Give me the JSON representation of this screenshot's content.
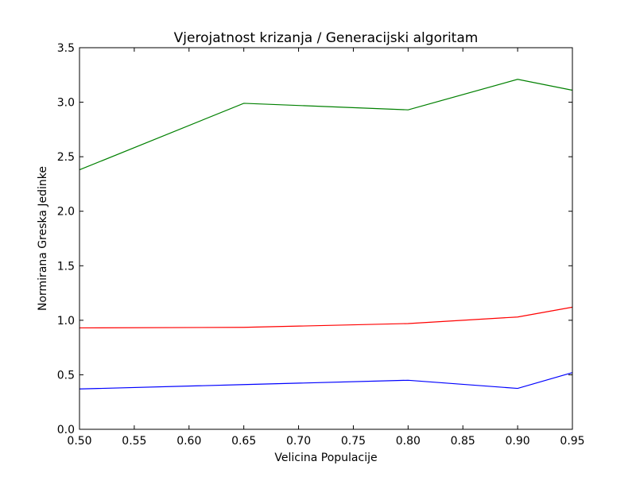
{
  "chart_data": {
    "type": "line",
    "title": "Vjerojatnost krizanja / Generacijski algoritam",
    "xlabel": "Velicina Populacije",
    "ylabel": "Normirana Greska Jedinke",
    "xlim": [
      0.5,
      0.95
    ],
    "ylim": [
      0.0,
      3.5
    ],
    "xticks": [
      "0.50",
      "0.55",
      "0.60",
      "0.65",
      "0.70",
      "0.75",
      "0.80",
      "0.85",
      "0.90",
      "0.95"
    ],
    "yticks": [
      "0.0",
      "0.5",
      "1.0",
      "1.5",
      "2.0",
      "2.5",
      "3.0",
      "3.5"
    ],
    "grid": false,
    "x": [
      0.5,
      0.65,
      0.8,
      0.9,
      0.95
    ],
    "series": [
      {
        "color": "#008000",
        "values": [
          2.38,
          2.99,
          2.93,
          3.21,
          3.11
        ]
      },
      {
        "color": "#ff0000",
        "values": [
          0.93,
          0.935,
          0.97,
          1.03,
          1.12
        ]
      },
      {
        "color": "#0000ff",
        "values": [
          0.37,
          0.41,
          0.45,
          0.375,
          0.52
        ]
      }
    ]
  }
}
